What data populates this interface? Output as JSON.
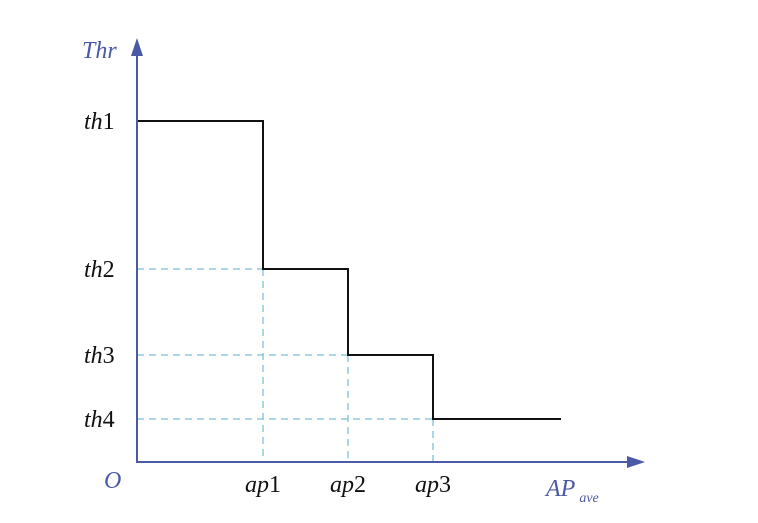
{
  "axes": {
    "y_label": "Thr",
    "x_label_main": "AP",
    "x_label_sub": "ave",
    "origin_label": "O"
  },
  "y_ticks": [
    {
      "prefix": "th",
      "num": "1"
    },
    {
      "prefix": "th",
      "num": "2"
    },
    {
      "prefix": "th",
      "num": "3"
    },
    {
      "prefix": "th",
      "num": "4"
    }
  ],
  "x_ticks": [
    {
      "prefix": "ap",
      "num": "1"
    },
    {
      "prefix": "ap",
      "num": "2"
    },
    {
      "prefix": "ap",
      "num": "3"
    }
  ],
  "colors": {
    "axis": "#4a5aa6",
    "step": "#111111",
    "guide": "#8ec9de"
  }
}
